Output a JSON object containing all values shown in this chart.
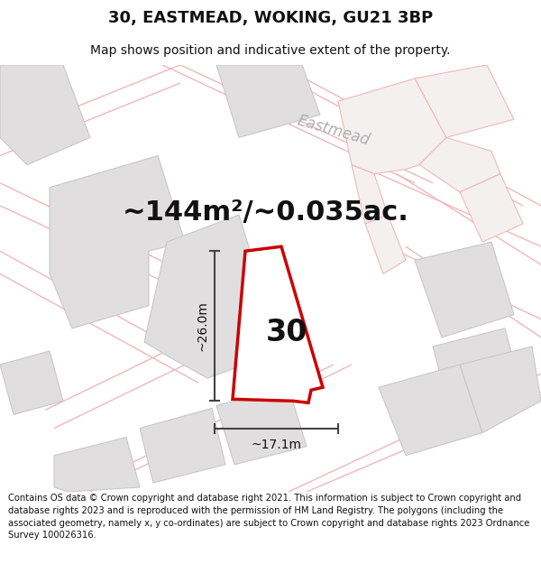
{
  "title": "30, EASTMEAD, WOKING, GU21 3BP",
  "subtitle": "Map shows position and indicative extent of the property.",
  "area_text": "~144m²/~0.035ac.",
  "label_30": "30",
  "dim_height": "~26.0m",
  "dim_width": "~17.1m",
  "road_label": "Eastmead",
  "footer": "Contains OS data © Crown copyright and database right 2021. This information is subject to Crown copyright and database rights 2023 and is reproduced with the permission of HM Land Registry. The polygons (including the associated geometry, namely x, y co-ordinates) are subject to Crown copyright and database rights 2023 Ordnance Survey 100026316.",
  "map_bg": "#f7f4f4",
  "building_fill": "#e0dede",
  "building_edge": "#c8c8c8",
  "road_pink": "#f0b8b8",
  "highlight_fill": "#ffffff",
  "highlight_edge": "#cc0000",
  "text_color": "#111111",
  "title_fontsize": 13,
  "subtitle_fontsize": 10,
  "area_fontsize": 22,
  "label_fontsize": 24,
  "dim_fontsize": 10,
  "footer_fontsize": 7.2,
  "road_label_fontsize": 12
}
